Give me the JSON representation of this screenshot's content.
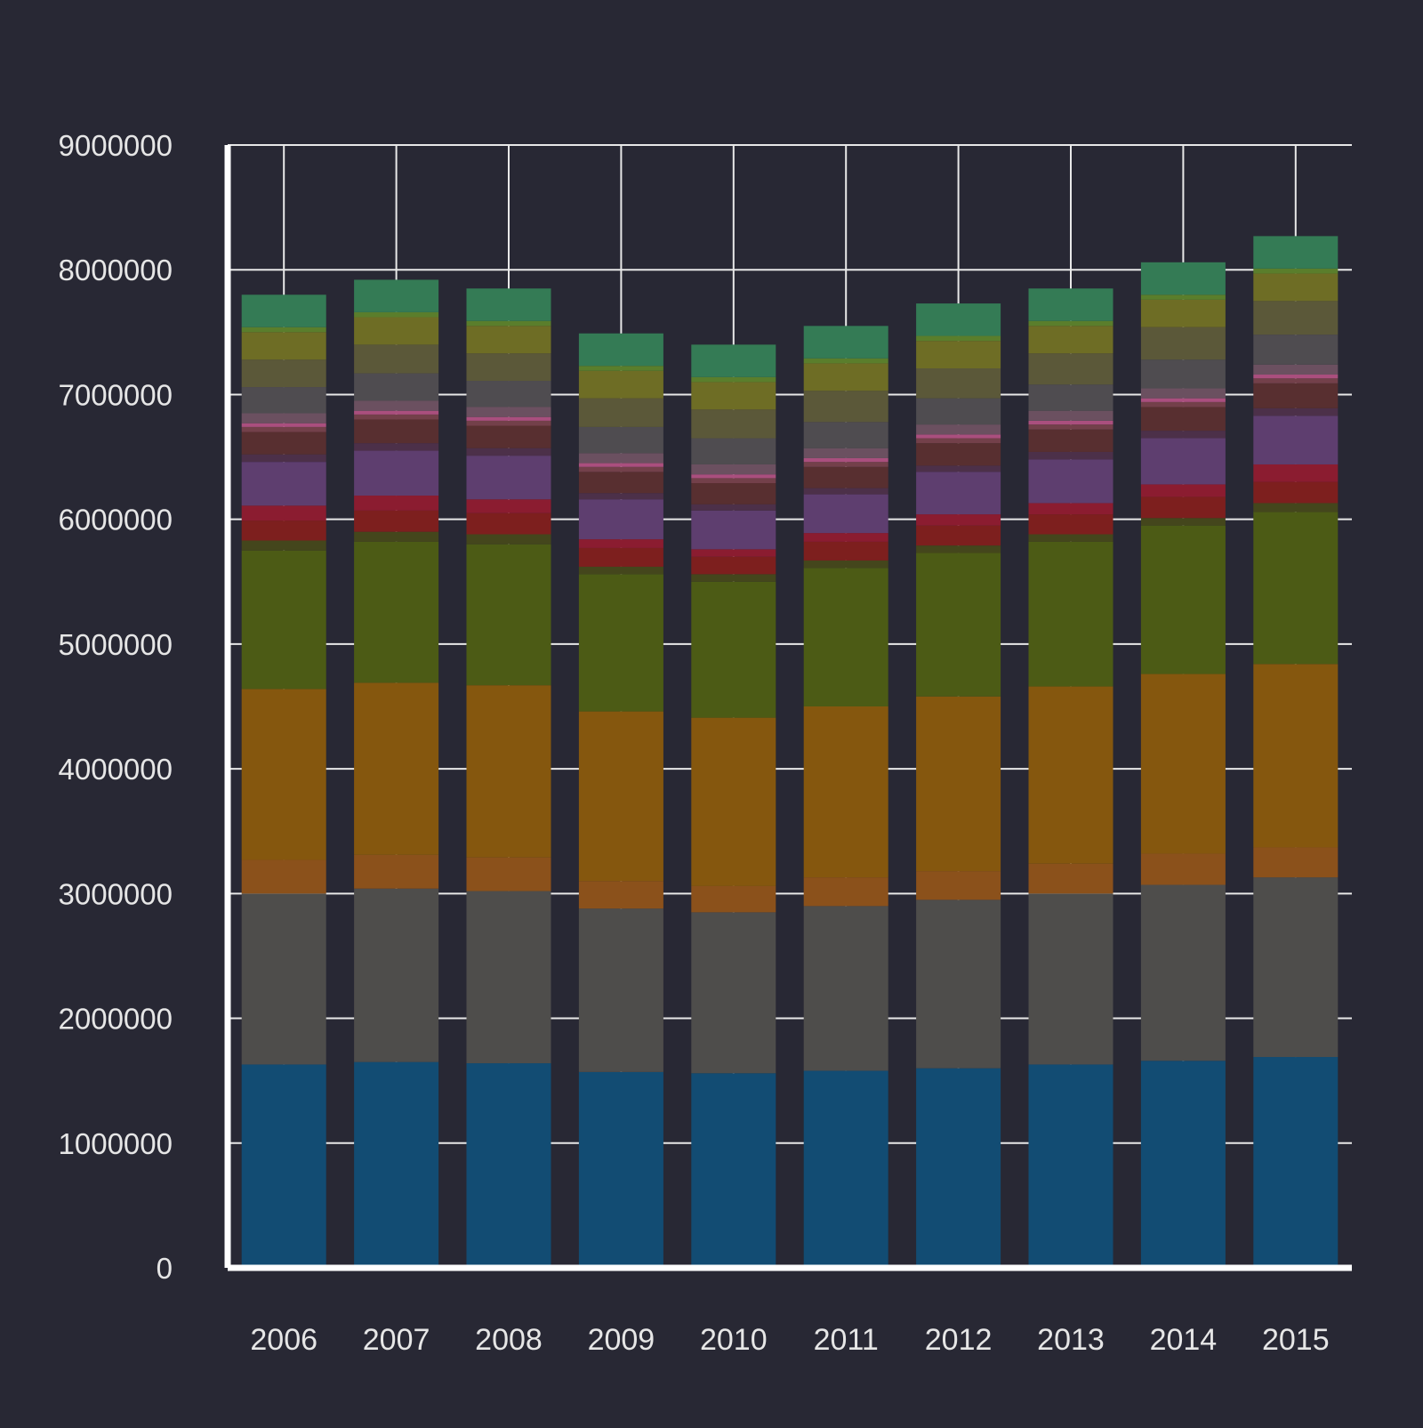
{
  "chart_data": {
    "type": "bar",
    "stacked": true,
    "categories": [
      "2006",
      "2007",
      "2008",
      "2009",
      "2010",
      "2011",
      "2012",
      "2013",
      "2014",
      "2015"
    ],
    "ylim": [
      0,
      9000000
    ],
    "y_ticks": [
      "0",
      "1000000",
      "2000000",
      "3000000",
      "4000000",
      "5000000",
      "6000000",
      "7000000",
      "8000000",
      "9000000"
    ],
    "grid": true,
    "legend": "none",
    "colors": {
      "background": "#282834",
      "axis": "#ffffff",
      "grid": "#e8e8e8",
      "text": "#e6e6e6"
    },
    "series": [
      {
        "color": "#124c73",
        "values": [
          1630000,
          1650000,
          1640000,
          1570000,
          1560000,
          1580000,
          1600000,
          1630000,
          1660000,
          1690000
        ]
      },
      {
        "color": "#4e4d4b",
        "values": [
          1370000,
          1390000,
          1380000,
          1310000,
          1290000,
          1320000,
          1350000,
          1370000,
          1410000,
          1440000
        ]
      },
      {
        "color": "#8b511b",
        "values": [
          270000,
          270000,
          270000,
          220000,
          210000,
          230000,
          230000,
          240000,
          250000,
          240000
        ]
      },
      {
        "color": "#85570e",
        "values": [
          1370000,
          1380000,
          1380000,
          1360000,
          1350000,
          1370000,
          1400000,
          1420000,
          1440000,
          1470000
        ]
      },
      {
        "color": "#4c5b15",
        "values": [
          1110000,
          1130000,
          1130000,
          1100000,
          1090000,
          1110000,
          1150000,
          1160000,
          1190000,
          1220000
        ]
      },
      {
        "color": "#44461c",
        "values": [
          80000,
          80000,
          80000,
          60000,
          60000,
          60000,
          60000,
          60000,
          60000,
          70000
        ]
      },
      {
        "color": "#7d1f1e",
        "values": [
          160000,
          170000,
          170000,
          150000,
          140000,
          150000,
          160000,
          160000,
          170000,
          170000
        ]
      },
      {
        "color": "#8b1c30",
        "values": [
          120000,
          120000,
          110000,
          70000,
          60000,
          70000,
          90000,
          90000,
          100000,
          140000
        ]
      },
      {
        "color": "#5e3e6f",
        "values": [
          350000,
          360000,
          350000,
          320000,
          310000,
          310000,
          340000,
          350000,
          370000,
          390000
        ]
      },
      {
        "color": "#4c3049",
        "values": [
          60000,
          60000,
          60000,
          50000,
          50000,
          50000,
          50000,
          60000,
          60000,
          60000
        ]
      },
      {
        "color": "#582f30",
        "values": [
          180000,
          190000,
          180000,
          170000,
          170000,
          170000,
          180000,
          180000,
          190000,
          200000
        ]
      },
      {
        "color": "#73404a",
        "values": [
          40000,
          40000,
          40000,
          40000,
          40000,
          40000,
          40000,
          40000,
          40000,
          40000
        ]
      },
      {
        "color": "#aa4f7e",
        "values": [
          30000,
          30000,
          30000,
          30000,
          30000,
          30000,
          30000,
          30000,
          30000,
          30000
        ]
      },
      {
        "color": "#6b5060",
        "values": [
          80000,
          80000,
          80000,
          80000,
          80000,
          80000,
          80000,
          80000,
          80000,
          80000
        ]
      },
      {
        "color": "#4f4c50",
        "values": [
          210000,
          220000,
          210000,
          210000,
          210000,
          210000,
          210000,
          210000,
          230000,
          240000
        ]
      },
      {
        "color": "#5b5839",
        "values": [
          220000,
          230000,
          220000,
          230000,
          230000,
          250000,
          240000,
          250000,
          260000,
          270000
        ]
      },
      {
        "color": "#6e6d25",
        "values": [
          220000,
          220000,
          220000,
          220000,
          220000,
          220000,
          220000,
          220000,
          220000,
          220000
        ]
      },
      {
        "color": "#5a7e2c",
        "values": [
          40000,
          40000,
          40000,
          40000,
          40000,
          40000,
          40000,
          40000,
          40000,
          40000
        ]
      },
      {
        "color": "#347b55",
        "values": [
          260000,
          260000,
          260000,
          260000,
          260000,
          260000,
          260000,
          260000,
          260000,
          260000
        ]
      }
    ]
  }
}
